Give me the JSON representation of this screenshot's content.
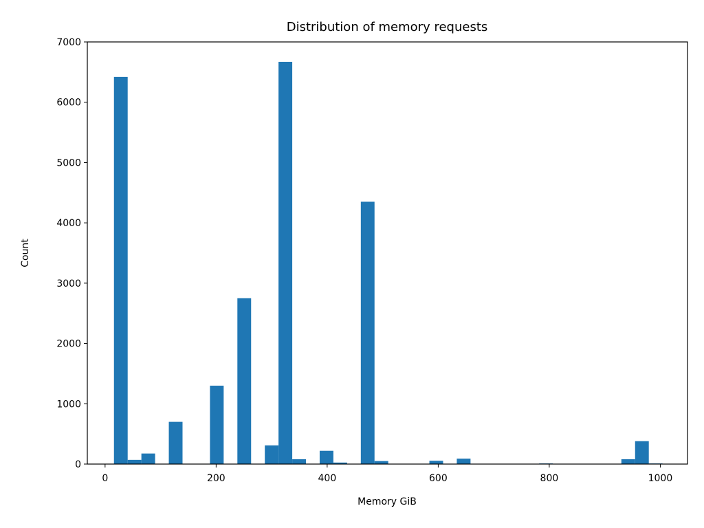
{
  "chart_data": {
    "type": "bar",
    "title": "Distribution of memory requests",
    "xlabel": "Memory GiB",
    "ylabel": "Count",
    "xlim": [
      -32,
      1049
    ],
    "ylim": [
      0,
      7000
    ],
    "xticks": [
      0,
      200,
      400,
      600,
      800,
      1000
    ],
    "yticks": [
      0,
      1000,
      2000,
      3000,
      4000,
      5000,
      6000,
      7000
    ],
    "grid": false,
    "bin_edges": [
      16,
      40.7,
      65.4,
      90.1,
      114.8,
      139.5,
      164.2,
      188.9,
      213.6,
      238.3,
      263.0,
      287.7,
      312.4,
      337.1,
      361.8,
      386.5,
      411.2,
      435.9,
      460.6,
      485.3,
      510.0,
      534.7,
      559.4,
      584.1,
      608.8,
      633.5,
      658.2,
      682.9,
      707.6,
      732.3,
      757.0,
      781.7,
      806.4,
      831.1,
      855.8,
      880.5,
      905.2,
      929.9,
      954.6,
      979.3,
      1004.0
    ],
    "counts": [
      6420,
      70,
      175,
      0,
      700,
      0,
      0,
      1300,
      0,
      2750,
      0,
      310,
      6670,
      80,
      0,
      220,
      25,
      0,
      4350,
      50,
      0,
      0,
      0,
      55,
      0,
      90,
      0,
      0,
      0,
      0,
      0,
      10,
      0,
      0,
      0,
      0,
      0,
      80,
      380,
      10
    ]
  },
  "colors": {
    "bar": "#1f77b4",
    "axes": "#000000"
  }
}
